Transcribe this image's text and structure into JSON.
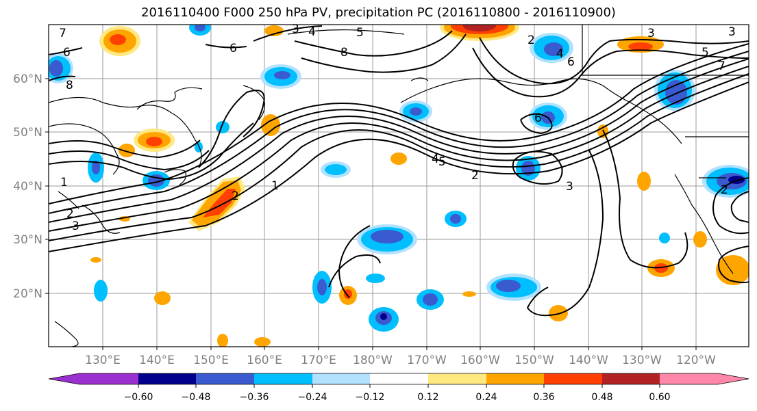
{
  "title": "2016110400 F000 250 hPa PV, precipitation PC (2016110800 - 2016110900)",
  "map": {
    "lat_labels": [
      "60°N",
      "50°N",
      "40°N",
      "30°N",
      "20°N"
    ],
    "lon_labels": [
      "130°E",
      "140°E",
      "150°E",
      "160°E",
      "170°E",
      "180°W",
      "170°W",
      "160°W",
      "150°W",
      "140°W",
      "130°W",
      "120°W"
    ],
    "contour_labels": [
      "7",
      "6",
      "8",
      "3",
      "4",
      "5",
      "2",
      "4",
      "6",
      "3",
      "5",
      "7",
      "8",
      "6",
      "4",
      "5",
      "2",
      "1",
      "2",
      "3",
      "2",
      "1",
      "6",
      "3",
      "3",
      "2"
    ]
  },
  "colorbar": {
    "tick_labels": [
      "−0.60",
      "−0.48",
      "−0.36",
      "−0.24",
      "−0.12",
      "0.12",
      "0.24",
      "0.36",
      "0.48",
      "0.60"
    ],
    "colors": [
      "#9b30d0",
      "#00008b",
      "#3a5bd0",
      "#00bfff",
      "#b0e2ff",
      "#ffffff",
      "#ffe880",
      "#ffa500",
      "#ff4000",
      "#b22222",
      "#ff88aa"
    ]
  }
}
